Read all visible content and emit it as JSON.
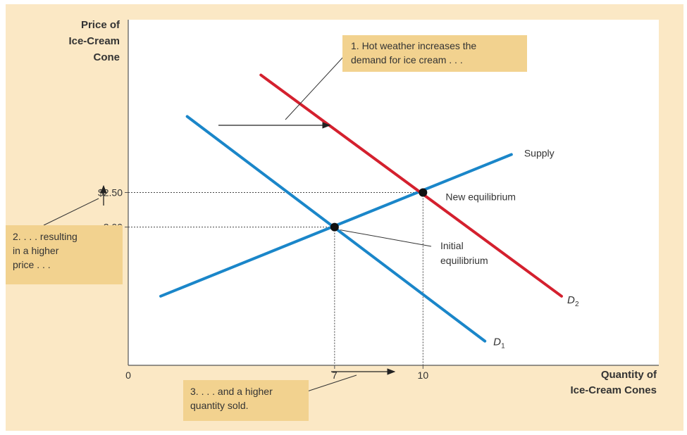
{
  "chart_data": {
    "type": "line",
    "title": "",
    "ylabel_lines": [
      "Price of",
      "Ice-Cream",
      "Cone"
    ],
    "xlabel_lines": [
      "Quantity of",
      "Ice-Cream Cones"
    ],
    "origin_label": "0",
    "xlim": [
      0,
      18
    ],
    "ylim": [
      0,
      5
    ],
    "y_ticks": [
      {
        "value": 2.5,
        "label": "$2.50"
      },
      {
        "value": 2.0,
        "label": "2.00"
      }
    ],
    "x_ticks": [
      {
        "value": 7,
        "label": "7"
      },
      {
        "value": 10,
        "label": "10"
      }
    ],
    "series": [
      {
        "name": "Supply",
        "color": "#1a86c9",
        "points": [
          [
            1.1,
            1.0
          ],
          [
            13.0,
            3.05
          ]
        ]
      },
      {
        "name": "D",
        "subscript": "1",
        "color": "#1a86c9",
        "points": [
          [
            2.0,
            3.6
          ],
          [
            12.1,
            0.35
          ]
        ]
      },
      {
        "name": "D",
        "subscript": "2",
        "color": "#d4202e",
        "points": [
          [
            4.5,
            4.2
          ],
          [
            14.7,
            1.0
          ]
        ]
      }
    ],
    "points": [
      {
        "label": "Initial equilibrium",
        "label_lines": [
          "Initial",
          "equilibrium"
        ],
        "x": 7,
        "y": 2.0
      },
      {
        "label": "New equilibrium",
        "x": 10,
        "y": 2.5
      }
    ],
    "annotations": [
      {
        "id": "demand-shift",
        "lines": [
          "1. Hot weather increases the",
          "demand for ice cream . . ."
        ]
      },
      {
        "id": "higher-price",
        "lines": [
          "2. . . . resulting",
          "in a higher",
          "price . . ."
        ]
      },
      {
        "id": "higher-quantity",
        "lines": [
          "3. . . . and a higher",
          "quantity sold."
        ]
      }
    ],
    "background_color": "#fbe8c5",
    "grid": false
  }
}
